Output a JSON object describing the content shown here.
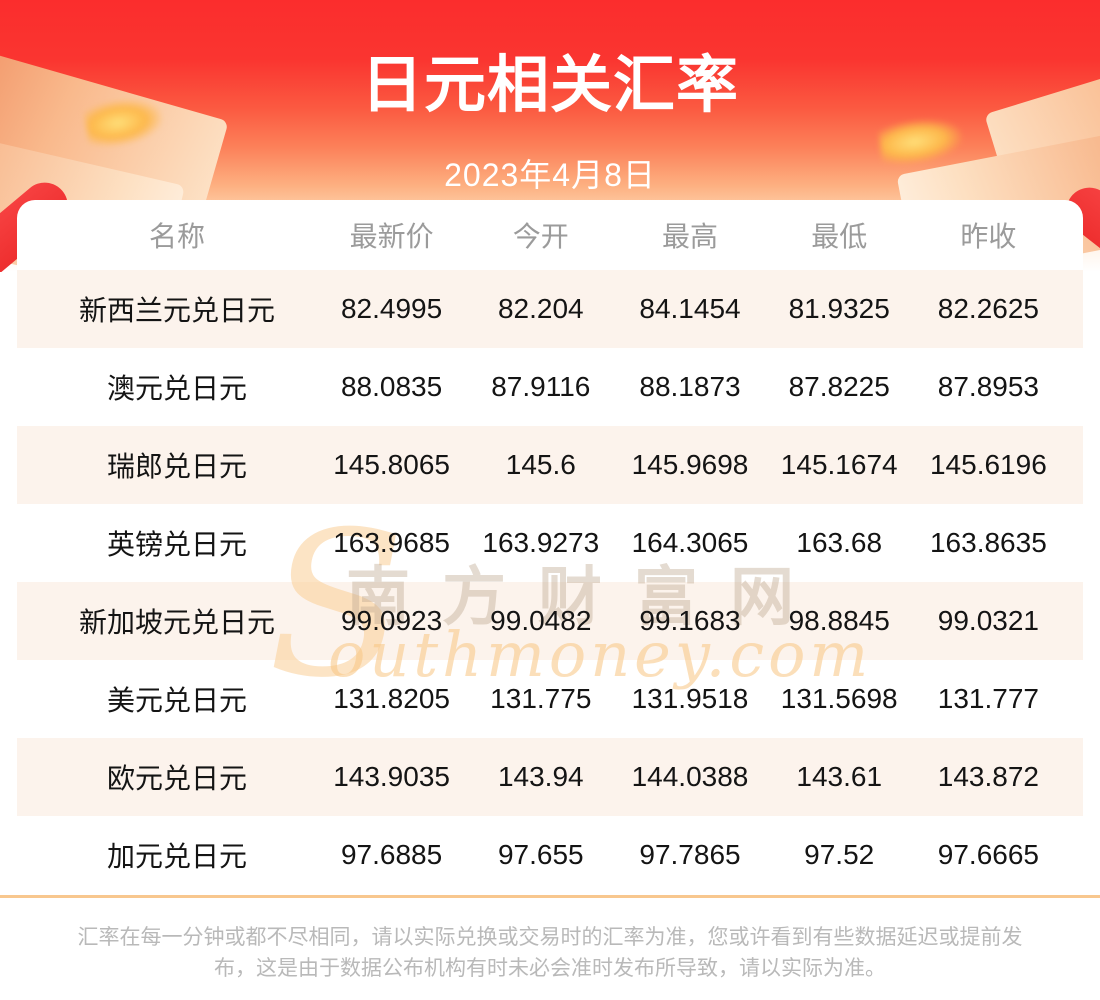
{
  "chart_data": {
    "type": "table",
    "title": "日元相关汇率",
    "date": "2023年4月8日",
    "columns": [
      "名称",
      "最新价",
      "今开",
      "最高",
      "最低",
      "昨收"
    ],
    "rows": [
      [
        "新西兰元兑日元",
        "82.4995",
        "82.204",
        "84.1454",
        "81.9325",
        "82.2625"
      ],
      [
        "澳元兑日元",
        "88.0835",
        "87.9116",
        "88.1873",
        "87.8225",
        "87.8953"
      ],
      [
        "瑞郎兑日元",
        "145.8065",
        "145.6",
        "145.9698",
        "145.1674",
        "145.6196"
      ],
      [
        "英镑兑日元",
        "163.9685",
        "163.9273",
        "164.3065",
        "163.68",
        "163.8635"
      ],
      [
        "新加坡元兑日元",
        "99.0923",
        "99.0482",
        "99.1683",
        "98.8845",
        "99.0321"
      ],
      [
        "美元兑日元",
        "131.8205",
        "131.775",
        "131.9518",
        "131.5698",
        "131.777"
      ],
      [
        "欧元兑日元",
        "143.9035",
        "143.94",
        "144.0388",
        "143.61",
        "143.872"
      ],
      [
        "加元兑日元",
        "97.6885",
        "97.655",
        "97.7865",
        "97.52",
        "97.6665"
      ]
    ],
    "layout": {
      "alternating_rows": true,
      "grid": false,
      "header_position": "top"
    }
  },
  "watermark": {
    "initial": "S",
    "site_cn": "南方财富网",
    "site_en_rest": "outhmoney.com"
  },
  "footer": {
    "disclaimer": "汇率在每一分钟或都不尽相同，请以实际兑换或交易时的汇率为准，您或许看到有些数据延迟或提前发布，这是由于数据公布机构有时未必会准时发布所导致，请以实际为准。"
  },
  "colors": {
    "banner_red": "#fb2d2d",
    "banner_peach": "#fed8b4",
    "row_alt_cream": "#fcf3ec",
    "divider_orange": "#f8c78e",
    "header_gray": "#9b9b9b",
    "body_text": "#141414",
    "footer_gray": "#b9b9b9"
  }
}
